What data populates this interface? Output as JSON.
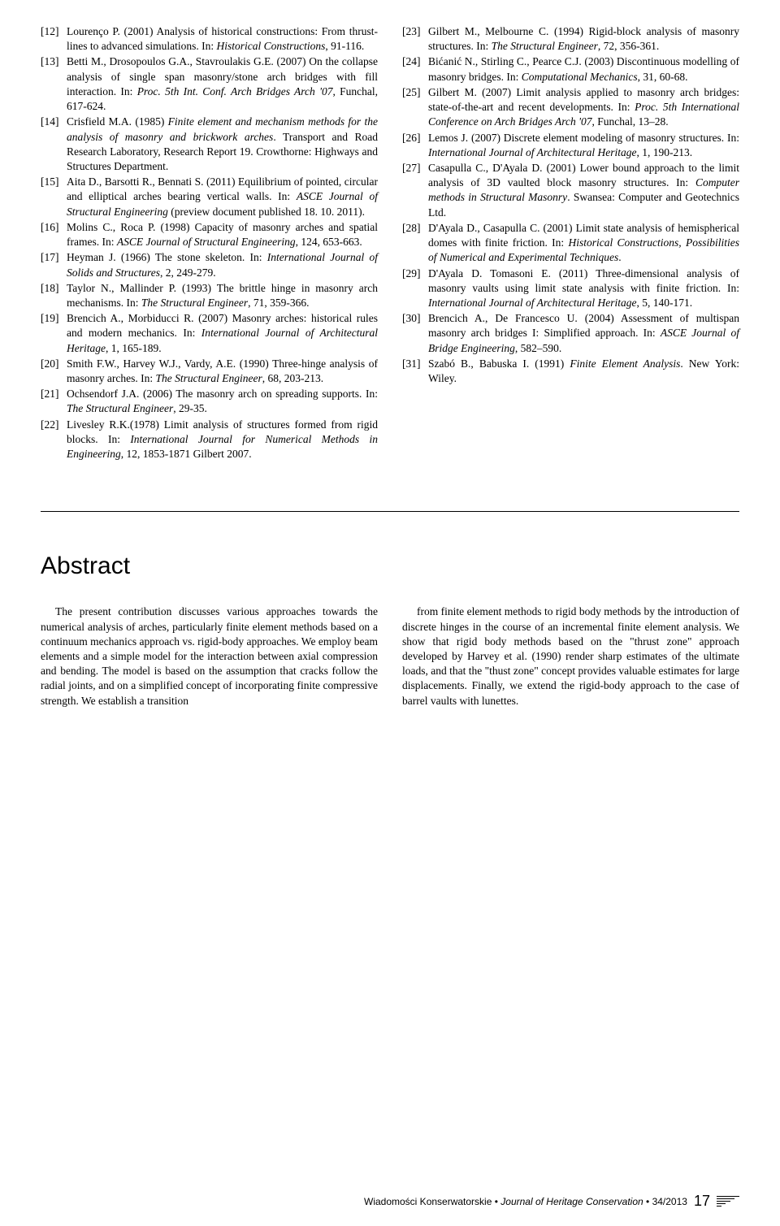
{
  "references_left": [
    {
      "num": "[12]",
      "html": "Lourenço P. (2001) Analysis of historical constructions: From thrust-lines to advanced simulations. In: <i>Historical Constructions</i>, 91-116."
    },
    {
      "num": "[13]",
      "html": "Betti M., Drosopoulos G.A., Stavroulakis G.E. (2007) On the collapse analysis of single span masonry/stone arch bridges with fill interaction. In: <i>Proc. 5th Int. Conf. Arch Bridges Arch '07</i>, Funchal, 617-624."
    },
    {
      "num": "[14]",
      "html": "Crisfield M.A. (1985) <i>Finite element and mechanism methods for the analysis of masonry and brickwork arches</i>. Transport and Road Research Laboratory, Research Report 19. Crowthorne: Highways and Structures Department."
    },
    {
      "num": "[15]",
      "html": "Aita D., Barsotti R., Bennati S. (2011) Equilibrium of pointed, circular and elliptical arches bearing vertical walls. In: <i>ASCE Journal of Structural Engineering</i> (preview document published 18. 10. 2011)."
    },
    {
      "num": "[16]",
      "html": "Molins C., Roca P. (1998) Capacity of masonry arches and spatial frames. In: <i>ASCE Journal of Structural Engineering</i>, 124, 653-663."
    },
    {
      "num": "[17]",
      "html": "Heyman J. (1966) The stone skeleton. In: <i>International Journal of Solids and Structures</i>, 2, 249-279."
    },
    {
      "num": "[18]",
      "html": "Taylor N., Mallinder P. (1993) The brittle hinge in masonry arch mechanisms. In: <i>The Structural Engineer</i>, 71, 359-366."
    },
    {
      "num": "[19]",
      "html": "Brencich A., Morbiducci R. (2007) Masonry arches: historical rules and modern mechanics. In: <i>International Journal of Architectural Heritage</i>, 1, 165-189."
    },
    {
      "num": "[20]",
      "html": "Smith F.W., Harvey W.J., Vardy, A.E. (1990) Three-hinge analysis of masonry arches. In: <i>The Structural Engineer</i>, 68, 203-213."
    },
    {
      "num": "[21]",
      "html": "Ochsendorf J.A. (2006) The masonry arch on spreading supports. In: <i>The Structural Engineer</i>, 29-35."
    },
    {
      "num": "[22]",
      "html": "Livesley R.K.(1978) Limit analysis of structures formed from rigid blocks. In: <i>International Journal for Numerical Methods in Engineering</i>, 12, 1853-1871 Gilbert 2007."
    }
  ],
  "references_right": [
    {
      "num": "[23]",
      "html": "Gilbert M., Melbourne C. (1994) Rigid-block analysis of masonry structures. In: <i>The Structural Engineer</i>, 72, 356-361."
    },
    {
      "num": "[24]",
      "html": "Bićanić N., Stirling C., Pearce C.J. (2003) Discontinuous modelling of masonry bridges. In: <i>Computational Mechanics</i>, 31, 60-68."
    },
    {
      "num": "[25]",
      "html": "Gilbert M. (2007) Limit analysis applied to masonry arch bridges: state-of-the-art and recent developments. In: <i>Proc. 5th International Conference on Arch Bridges Arch '07</i>, Funchal, 13–28."
    },
    {
      "num": "[26]",
      "html": "Lemos J. (2007) Discrete element modeling of masonry structures. In: <i>International Journal of Architectural Heritage</i>, 1, 190-213."
    },
    {
      "num": "[27]",
      "html": "Casapulla C., D'Ayala D. (2001) Lower bound approach to the limit analysis of 3D vaulted block masonry structures. In: <i>Computer methods in Structural Masonry</i>. Swansea: Computer and Geotechnics Ltd."
    },
    {
      "num": "[28]",
      "html": "D'Ayala D., Casapulla C. (2001) Limit state analysis of hemispherical domes with finite friction. In: <i>Historical Constructions, Possibilities of Numerical and Experimental Techniques</i>."
    },
    {
      "num": "[29]",
      "html": "D'Ayala D. Tomasoni E. (2011) Three-dimensional analysis of masonry vaults using limit state analysis with finite friction. In: <i>International Journal of Architectural Heritage</i>, 5, 140-171."
    },
    {
      "num": "[30]",
      "html": "Brencich A., De Francesco U. (2004) Assessment of multispan masonry arch bridges I: Simplified approach. In: <i>ASCE Journal of Bridge Engineering</i>, 582–590."
    },
    {
      "num": "[31]",
      "html": "Szabó B., Babuska I. (1991) <i>Finite Element Analysis</i>. New York: Wiley."
    }
  ],
  "abstract": {
    "title": "Abstract",
    "left": "The present contribution discusses various approaches towards the numerical analysis of arches, particularly finite element methods based on a continuum mechanics approach vs. rigid-body approaches. We employ beam elements and a simple model for the interaction between axial compression and bending. The model is based on the assumption that cracks follow the radial joints, and on a simplified concept of incorporating finite compressive strength. We establish a transition",
    "right": "from finite element methods to rigid body methods by the introduction of discrete hinges in the course of an incremental finite element analysis. We show that rigid body methods based on the \"thrust zone\" approach developed by Harvey et al. (1990) render sharp estimates of the ultimate loads, and that the \"thust zone\" concept provides valuable estimates for large displacements. Finally, we extend the rigid-body approach to the case of barrel vaults with lunettes."
  },
  "footer": {
    "journal_pl": "Wiadomości Konserwatorskie",
    "journal_en": "Journal of Heritage Conservation",
    "issue": "34/2013",
    "page": "17"
  }
}
